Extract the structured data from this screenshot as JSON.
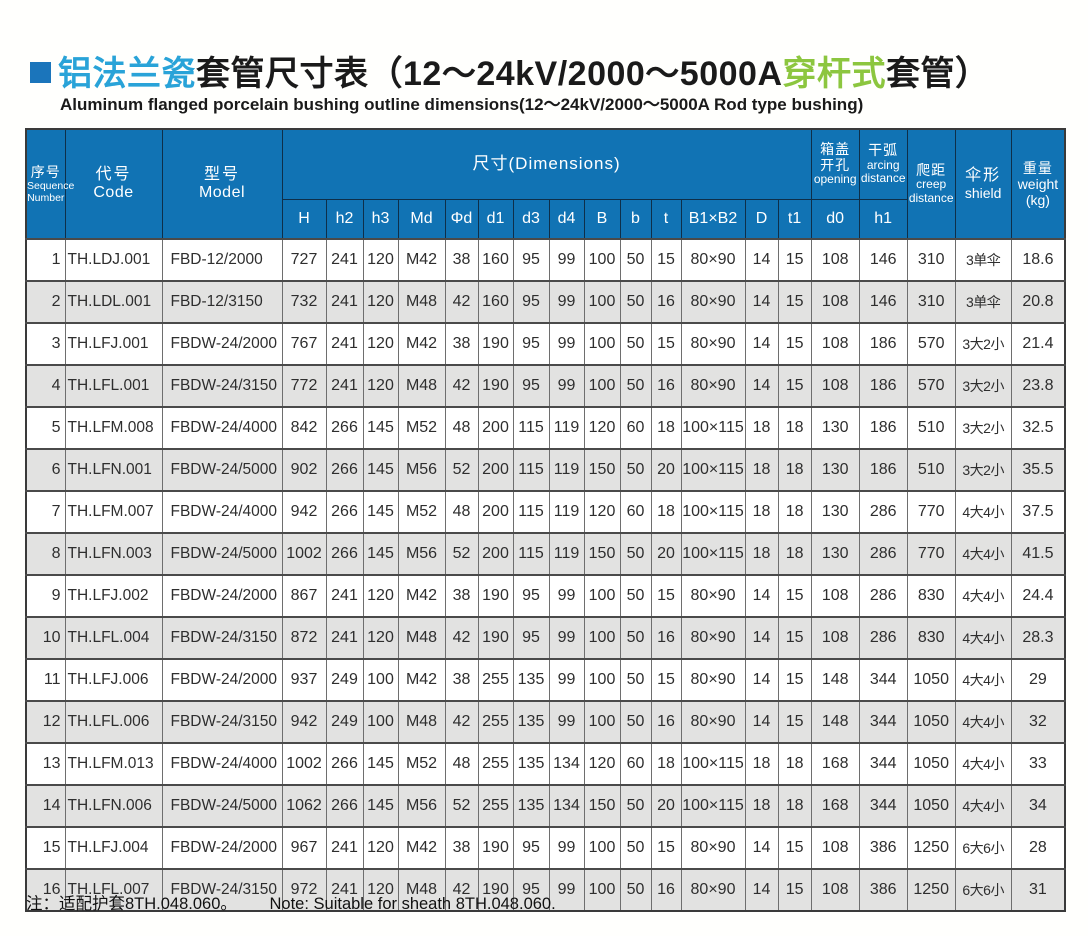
{
  "colors": {
    "header_blue": "#1173b4",
    "title_cyan": "#29a3d8",
    "title_green": "#8cc63f",
    "bullet_blue": "#1b75bb",
    "row_alt_gray": "#e2e2e1"
  },
  "title": {
    "cn_cyan": "铝法兰瓷",
    "cn_black1": "套管尺寸表（12～24kV/2000～5000A",
    "cn_green": "穿杆式",
    "cn_black2": "套管）",
    "subtitle": "Aluminum flanged porcelain bushing outline dimensions(12～24kV/2000～5000A  Rod type bushing)"
  },
  "table": {
    "header": {
      "seq_cn": "序号",
      "seq_en1": "Sequence",
      "seq_en2": "Number",
      "code_cn": "代号",
      "code_en": "Code",
      "model_cn": "型号",
      "model_en": "Model",
      "dims": "尺寸(Dimensions)",
      "dim_cols": [
        "H",
        "h2",
        "h3",
        "Md",
        "Φd",
        "d1",
        "d3",
        "d4",
        "B",
        "b",
        "t",
        "B1×B2",
        "D",
        "t1"
      ],
      "opening_cn1": "箱盖",
      "opening_cn2": "开孔",
      "opening_en": "opening",
      "opening_sub": "d0",
      "arcing_cn": "干弧",
      "arcing_en1": "arcing",
      "arcing_en2": "distance",
      "arcing_sub": "h1",
      "creep_cn": "爬距",
      "creep_en1": "creep",
      "creep_en2": "distance",
      "shield_cn": "伞形",
      "shield_en": "shield",
      "weight_cn": "重量",
      "weight_en": "weight",
      "weight_unit": "(kg)"
    },
    "rows": [
      [
        "1",
        "TH.LDJ.001",
        "FBD-12/2000",
        "727",
        "241",
        "120",
        "M42",
        "38",
        "160",
        "95",
        "99",
        "100",
        "50",
        "15",
        "80×90",
        "14",
        "15",
        "108",
        "146",
        "310",
        "3单伞",
        "18.6"
      ],
      [
        "2",
        "TH.LDL.001",
        "FBD-12/3150",
        "732",
        "241",
        "120",
        "M48",
        "42",
        "160",
        "95",
        "99",
        "100",
        "50",
        "16",
        "80×90",
        "14",
        "15",
        "108",
        "146",
        "310",
        "3单伞",
        "20.8"
      ],
      [
        "3",
        "TH.LFJ.001",
        "FBDW-24/2000",
        "767",
        "241",
        "120",
        "M42",
        "38",
        "190",
        "95",
        "99",
        "100",
        "50",
        "15",
        "80×90",
        "14",
        "15",
        "108",
        "186",
        "570",
        "3大2小",
        "21.4"
      ],
      [
        "4",
        "TH.LFL.001",
        "FBDW-24/3150",
        "772",
        "241",
        "120",
        "M48",
        "42",
        "190",
        "95",
        "99",
        "100",
        "50",
        "16",
        "80×90",
        "14",
        "15",
        "108",
        "186",
        "570",
        "3大2小",
        "23.8"
      ],
      [
        "5",
        "TH.LFM.008",
        "FBDW-24/4000",
        "842",
        "266",
        "145",
        "M52",
        "48",
        "200",
        "115",
        "119",
        "120",
        "60",
        "18",
        "100×115",
        "18",
        "18",
        "130",
        "186",
        "510",
        "3大2小",
        "32.5"
      ],
      [
        "6",
        "TH.LFN.001",
        "FBDW-24/5000",
        "902",
        "266",
        "145",
        "M56",
        "52",
        "200",
        "115",
        "119",
        "150",
        "50",
        "20",
        "100×115",
        "18",
        "18",
        "130",
        "186",
        "510",
        "3大2小",
        "35.5"
      ],
      [
        "7",
        "TH.LFM.007",
        "FBDW-24/4000",
        "942",
        "266",
        "145",
        "M52",
        "48",
        "200",
        "115",
        "119",
        "120",
        "60",
        "18",
        "100×115",
        "18",
        "18",
        "130",
        "286",
        "770",
        "4大4小",
        "37.5"
      ],
      [
        "8",
        "TH.LFN.003",
        "FBDW-24/5000",
        "1002",
        "266",
        "145",
        "M56",
        "52",
        "200",
        "115",
        "119",
        "150",
        "50",
        "20",
        "100×115",
        "18",
        "18",
        "130",
        "286",
        "770",
        "4大4小",
        "41.5"
      ],
      [
        "9",
        "TH.LFJ.002",
        "FBDW-24/2000",
        "867",
        "241",
        "120",
        "M42",
        "38",
        "190",
        "95",
        "99",
        "100",
        "50",
        "15",
        "80×90",
        "14",
        "15",
        "108",
        "286",
        "830",
        "4大4小",
        "24.4"
      ],
      [
        "10",
        "TH.LFL.004",
        "FBDW-24/3150",
        "872",
        "241",
        "120",
        "M48",
        "42",
        "190",
        "95",
        "99",
        "100",
        "50",
        "16",
        "80×90",
        "14",
        "15",
        "108",
        "286",
        "830",
        "4大4小",
        "28.3"
      ],
      [
        "11",
        "TH.LFJ.006",
        "FBDW-24/2000",
        "937",
        "249",
        "100",
        "M42",
        "38",
        "255",
        "135",
        "99",
        "100",
        "50",
        "15",
        "80×90",
        "14",
        "15",
        "148",
        "344",
        "1050",
        "4大4小",
        "29"
      ],
      [
        "12",
        "TH.LFL.006",
        "FBDW-24/3150",
        "942",
        "249",
        "100",
        "M48",
        "42",
        "255",
        "135",
        "99",
        "100",
        "50",
        "16",
        "80×90",
        "14",
        "15",
        "148",
        "344",
        "1050",
        "4大4小",
        "32"
      ],
      [
        "13",
        "TH.LFM.013",
        "FBDW-24/4000",
        "1002",
        "266",
        "145",
        "M52",
        "48",
        "255",
        "135",
        "134",
        "120",
        "60",
        "18",
        "100×115",
        "18",
        "18",
        "168",
        "344",
        "1050",
        "4大4小",
        "33"
      ],
      [
        "14",
        "TH.LFN.006",
        "FBDW-24/5000",
        "1062",
        "266",
        "145",
        "M56",
        "52",
        "255",
        "135",
        "134",
        "150",
        "50",
        "20",
        "100×115",
        "18",
        "18",
        "168",
        "344",
        "1050",
        "4大4小",
        "34"
      ],
      [
        "15",
        "TH.LFJ.004",
        "FBDW-24/2000",
        "967",
        "241",
        "120",
        "M42",
        "38",
        "190",
        "95",
        "99",
        "100",
        "50",
        "15",
        "80×90",
        "14",
        "15",
        "108",
        "386",
        "1250",
        "6大6小",
        "28"
      ],
      [
        "16",
        "TH.LFL.007",
        "FBDW-24/3150",
        "972",
        "241",
        "120",
        "M48",
        "42",
        "190",
        "95",
        "99",
        "100",
        "50",
        "16",
        "80×90",
        "14",
        "15",
        "108",
        "386",
        "1250",
        "6大6小",
        "31"
      ]
    ]
  },
  "footnote": {
    "cn": "注：适配护套8TH.048.060。",
    "en": "Note: Suitable for sheath 8TH.048.060."
  }
}
